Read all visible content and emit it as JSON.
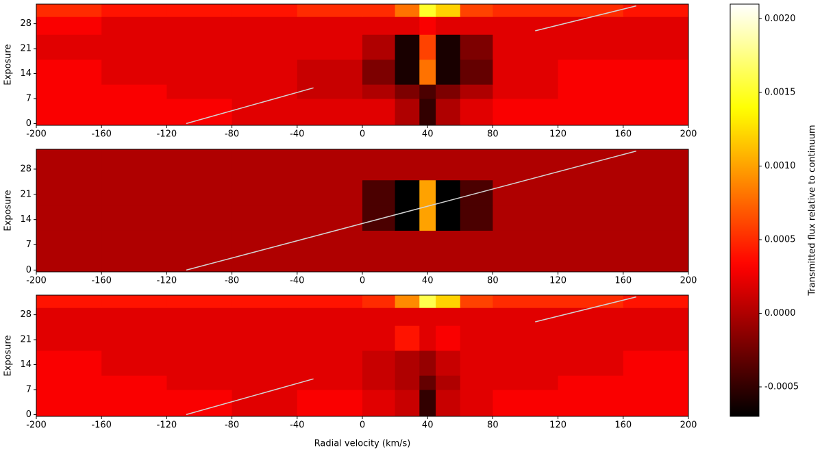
{
  "chart_data": [
    {
      "type": "heatmap",
      "ylabel": "Exposure",
      "xbins": [
        -200,
        -160,
        -120,
        -80,
        -40,
        0,
        20,
        35,
        45,
        60,
        80,
        120,
        160,
        200
      ],
      "ybins": [
        0,
        7,
        11,
        18,
        25,
        30,
        33
      ],
      "values": [
        [
          0.0003,
          0.0003,
          0.0003,
          0.0002,
          0.0002,
          0.0002,
          0.0,
          -0.0005,
          0.0,
          0.0002,
          0.0003,
          0.0003,
          0.0003
        ],
        [
          0.0003,
          0.0003,
          0.0002,
          0.0002,
          0.0001,
          0.0,
          -0.0002,
          -0.0004,
          -0.0002,
          0.0,
          0.0002,
          0.0003,
          0.0003
        ],
        [
          0.0003,
          0.0002,
          0.0002,
          0.0002,
          0.0001,
          -0.0002,
          -0.0006,
          0.0008,
          -0.0006,
          -0.0003,
          0.0002,
          0.0003,
          0.0003
        ],
        [
          0.0002,
          0.0002,
          0.0002,
          0.0002,
          0.0002,
          0.0,
          -0.0006,
          0.0006,
          -0.0006,
          -0.0002,
          0.0002,
          0.0002,
          0.0002
        ],
        [
          0.0003,
          0.0002,
          0.0002,
          0.0002,
          0.0002,
          0.0002,
          0.0002,
          0.0003,
          0.0002,
          0.0002,
          0.0002,
          0.0002,
          0.0002
        ],
        [
          0.0005,
          0.0004,
          0.0004,
          0.0004,
          0.0005,
          0.0005,
          0.0008,
          0.0015,
          0.0012,
          0.0006,
          0.0005,
          0.0005,
          0.0004
        ]
      ],
      "line": {
        "x": [
          -108,
          -30,
          null,
          106,
          168
        ],
        "y": [
          0,
          10,
          null,
          26,
          33
        ],
        "color": "#d3d3d3"
      },
      "xlim": [
        -200,
        200
      ],
      "xticks": [
        -200,
        -160,
        -120,
        -80,
        -40,
        0,
        40,
        80,
        120,
        160,
        200
      ],
      "ylim": [
        -0.5,
        33.5
      ],
      "yticks": [
        0,
        7,
        14,
        21,
        28
      ]
    },
    {
      "type": "heatmap",
      "ylabel": "Exposure",
      "xbins": [
        -200,
        -160,
        -120,
        -80,
        -40,
        0,
        20,
        35,
        45,
        60,
        80,
        120,
        160,
        200
      ],
      "ybins": [
        0,
        7,
        11,
        18,
        25,
        30,
        33
      ],
      "values": [
        [
          0,
          0,
          0,
          0,
          0,
          0,
          0,
          0,
          0,
          0,
          0,
          0,
          0
        ],
        [
          0,
          0,
          0,
          0,
          0,
          0,
          0,
          0,
          0,
          0,
          0,
          0,
          0
        ],
        [
          0,
          0,
          0,
          0,
          0,
          -0.0004,
          -0.0007,
          0.001,
          -0.0007,
          -0.0004,
          0,
          0,
          0
        ],
        [
          0,
          0,
          0,
          0,
          0,
          -0.0004,
          -0.0007,
          0.001,
          -0.0007,
          -0.0004,
          0,
          0,
          0
        ],
        [
          0,
          0,
          0,
          0,
          0,
          0,
          0,
          0,
          0,
          0,
          0,
          0,
          0
        ],
        [
          0,
          0,
          0,
          0,
          0,
          0,
          0,
          0,
          0,
          0,
          0,
          0,
          0
        ]
      ],
      "line": {
        "x": [
          -108,
          168
        ],
        "y": [
          0,
          33
        ],
        "color": "#d3d3d3"
      },
      "xlim": [
        -200,
        200
      ],
      "xticks": [
        -200,
        -160,
        -120,
        -80,
        -40,
        0,
        40,
        80,
        120,
        160,
        200
      ],
      "ylim": [
        -0.5,
        33.5
      ],
      "yticks": [
        0,
        7,
        14,
        21,
        28
      ]
    },
    {
      "type": "heatmap",
      "ylabel": "Exposure",
      "xlabel": "Radial velocity (km/s)",
      "xbins": [
        -200,
        -160,
        -120,
        -80,
        -40,
        0,
        20,
        35,
        45,
        60,
        80,
        120,
        160,
        200
      ],
      "ybins": [
        0,
        7,
        11,
        18,
        25,
        30,
        33
      ],
      "values": [
        [
          0.0003,
          0.0003,
          0.0003,
          0.0002,
          0.0003,
          0.0002,
          0.0001,
          -0.0005,
          0.0001,
          0.0002,
          0.0003,
          0.0003,
          0.0003
        ],
        [
          0.0003,
          0.0003,
          0.0002,
          0.0002,
          0.0002,
          0.0001,
          0.0,
          -0.0003,
          0.0,
          0.0002,
          0.0002,
          0.0003,
          0.0003
        ],
        [
          0.0003,
          0.0002,
          0.0002,
          0.0002,
          0.0002,
          0.0001,
          0.0,
          -0.0001,
          0.0001,
          0.0002,
          0.0002,
          0.0002,
          0.0003
        ],
        [
          0.0002,
          0.0002,
          0.0002,
          0.0002,
          0.0002,
          0.0002,
          0.0004,
          0.0002,
          0.0003,
          0.0002,
          0.0002,
          0.0002,
          0.0002
        ],
        [
          0.0002,
          0.0002,
          0.0002,
          0.0002,
          0.0002,
          0.0002,
          0.0002,
          0.0002,
          0.0002,
          0.0002,
          0.0002,
          0.0002,
          0.0002
        ],
        [
          0.0004,
          0.0004,
          0.0004,
          0.0004,
          0.0004,
          0.0005,
          0.0009,
          0.0016,
          0.0012,
          0.0006,
          0.0005,
          0.0005,
          0.0004
        ]
      ],
      "line": {
        "x": [
          -108,
          -30,
          null,
          106,
          168
        ],
        "y": [
          0,
          10,
          null,
          26,
          33
        ],
        "color": "#d3d3d3"
      },
      "xlim": [
        -200,
        200
      ],
      "xticks": [
        -200,
        -160,
        -120,
        -80,
        -40,
        0,
        40,
        80,
        120,
        160,
        200
      ],
      "ylim": [
        -0.5,
        33.5
      ],
      "yticks": [
        0,
        7,
        14,
        21,
        28
      ]
    }
  ],
  "colorbar": {
    "label": "Transmitted flux relative to continuum",
    "cmap": "hot",
    "clim": [
      -0.0007,
      0.0021
    ],
    "ticks": [
      -0.0005,
      {
        "value": 0,
        "label": "0.0000"
      },
      {
        "value": 0.0005,
        "label": "0.0005"
      },
      {
        "value": 0.001,
        "label": "0.0010"
      },
      {
        "value": 0.0015,
        "label": "0.0015"
      },
      {
        "value": 0.002,
        "label": "0.0020"
      }
    ]
  }
}
